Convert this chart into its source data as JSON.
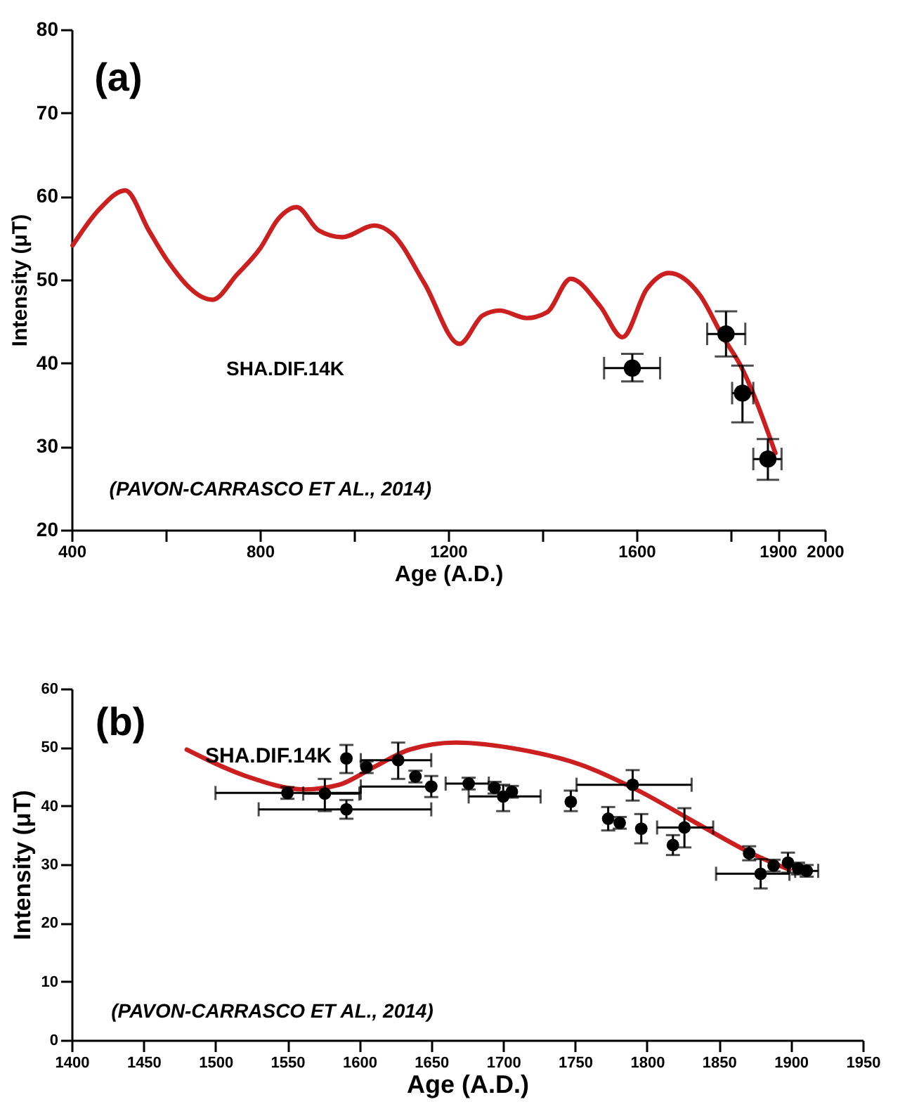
{
  "chart_data": [
    {
      "type": "scatter",
      "xlabel": "Age (A.D.)",
      "ylabel": "Intensity (μT)",
      "annotations": [
        "(a)",
        "(PAVON-CARRASCO ET AL., 2014)"
      ],
      "xlim": [
        400,
        2000
      ],
      "xticks": [
        400,
        {
          "value": 600,
          "label": null
        },
        800,
        {
          "value": 1000,
          "label": null
        },
        1200,
        {
          "value": 1400,
          "label": null
        },
        1600,
        {
          "value": 1800,
          "label": null
        },
        1900,
        2000
      ],
      "ylim": [
        20,
        80
      ],
      "yticks": [
        20,
        30,
        40,
        50,
        60,
        70,
        80
      ],
      "line_style": "solid",
      "series": [
        {
          "name": "SHA.DIF.14K",
          "type": "line",
          "color": "#cc1f1f",
          "x": [
            402,
            458,
            514,
            564,
            602,
            699,
            751,
            801,
            839,
            878,
            925,
            975,
            1043,
            1081,
            1149,
            1224,
            1273,
            1309,
            1367,
            1410,
            1460,
            1523,
            1570,
            1622,
            1669,
            1734,
            1783,
            1821,
            1895
          ],
          "values": [
            54.1,
            58.4,
            60.7,
            55.9,
            52.4,
            47.6,
            50.6,
            53.8,
            57.3,
            58.7,
            55.9,
            55.1,
            56.5,
            55.5,
            49.6,
            42.3,
            45.7,
            46.3,
            45.4,
            46.1,
            50.1,
            46.8,
            43.1,
            48.9,
            50.8,
            48.2,
            43.2,
            39.7,
            29.2
          ]
        },
        {
          "type": "scatter",
          "color": "#000000",
          "marker": "circle",
          "x": [
            1591,
            1790,
            1825,
            1879
          ],
          "values": [
            39.4,
            43.5,
            36.4,
            28.5
          ],
          "errors": [
            [
              37.8,
              41.1
            ],
            [
              40.8,
              46.2
            ],
            [
              32.9,
              39.7
            ],
            [
              26.0,
              30.9
            ]
          ],
          "xerrors": [
            [
              1531,
              1650
            ],
            [
              1750,
              1831
            ],
            [
              1803,
              1848
            ],
            [
              1848,
              1908
            ]
          ]
        }
      ]
    },
    {
      "type": "scatter",
      "xlabel": "Age (A.D.)",
      "ylabel": "Intensity (μT)",
      "annotations": [
        "(b)",
        "(PAVON-CARRASCO ET AL., 2014)"
      ],
      "xlim": [
        1400,
        1950
      ],
      "xticks": [
        1400,
        1450,
        1500,
        1550,
        1600,
        1650,
        1700,
        1750,
        1800,
        1850,
        1900,
        1950
      ],
      "ylim": [
        0,
        60
      ],
      "yticks": [
        0,
        10,
        20,
        30,
        40,
        50,
        60
      ],
      "line_style": "solid",
      "series": [
        {
          "name": "SHA.DIF.14K",
          "type": "line",
          "color": "#cc1f1f",
          "x": [
            1480,
            1521,
            1562,
            1586,
            1610,
            1635,
            1667,
            1712,
            1753,
            1794,
            1834,
            1875,
            1899
          ],
          "values": [
            49.6,
            45.1,
            42.8,
            43.6,
            46.6,
            49.6,
            50.8,
            49.6,
            47.1,
            42.6,
            37.1,
            31.6,
            29.1
          ]
        },
        {
          "type": "scatter",
          "color": "#000000",
          "marker": "circle",
          "x": [
            1550,
            1576,
            1591,
            1591,
            1605,
            1627,
            1639,
            1650,
            1676,
            1694,
            1700,
            1706,
            1747,
            1773,
            1781,
            1796,
            1790,
            1818,
            1826,
            1871,
            1879,
            1888,
            1898,
            1905,
            1911
          ],
          "values": [
            42.2,
            42.1,
            39.4,
            48.1,
            46.6,
            47.8,
            45.0,
            43.3,
            43.8,
            43.1,
            41.6,
            42.4,
            40.7,
            37.8,
            37.1,
            36.1,
            43.6,
            33.3,
            36.3,
            31.9,
            28.4,
            29.8,
            30.3,
            29.3,
            28.9
          ],
          "errors": [
            1,
            [
              39.1,
              44.6
            ],
            1.6,
            [
              45.6,
              50.4
            ],
            1,
            [
              44.6,
              50.8
            ],
            1,
            1.8,
            1,
            1,
            [
              39.1,
              43.6
            ],
            1,
            [
              39.1,
              42.6
            ],
            2,
            1,
            [
              33.6,
              38.6
            ],
            [
              40.9,
              46.1
            ],
            1.7,
            [
              32.9,
              39.6
            ],
            1.2,
            [
              25.9,
              30.9
            ],
            1,
            1.7,
            1,
            1
          ],
          "xerrors": [
            [
              1500,
              1601
            ],
            [
              1561,
              1600
            ],
            [
              1530,
              1650
            ],
            null,
            null,
            [
              1601,
              1650
            ],
            null,
            [
              1601,
              1650
            ],
            [
              1660,
              1690
            ],
            null,
            [
              1676,
              1726
            ],
            null,
            null,
            null,
            null,
            null,
            [
              1751,
              1831
            ],
            null,
            [
              1807,
              1846
            ],
            null,
            [
              1848,
              1899
            ],
            null,
            null,
            null,
            [
              1903,
              1919
            ]
          ]
        }
      ]
    }
  ]
}
